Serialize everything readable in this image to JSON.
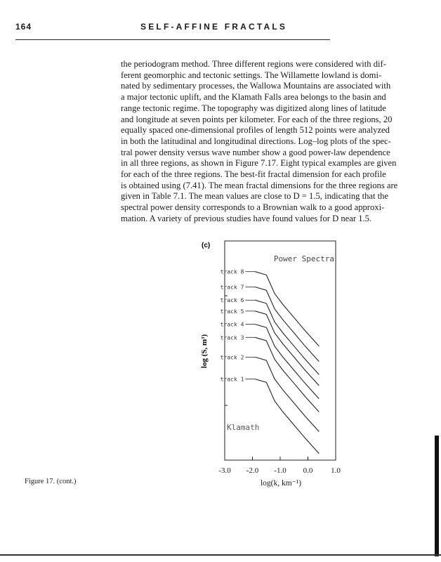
{
  "header": {
    "page_number": "164",
    "running_title": "SELF-AFFINE FRACTALS"
  },
  "body_lines": [
    "the periodogram method. Three different regions were considered with dif-",
    "ferent geomorphic and tectonic settings. The Willamette lowland is domi-",
    "nated by sedimentary processes, the Wallowa Mountains are associated with",
    "a major tectonic uplift, and the Klamath Falls area belongs to the basin and",
    "range tectonic regime. The topography was digitized along lines of latitude",
    "and longitude at seven points per kilometer. For each of the three regions, 20",
    "equally spaced one-dimensional profiles of length 512 points were analyzed",
    "in both the latitudinal and longitudinal directions. Log–log plots of the spec-",
    "tral power density versus wave number show a good power-law dependence",
    "in all three regions, as shown in Figure 7.17. Eight typical examples are given",
    "for each of the three regions. The best-fit fractal dimension for each profile",
    "is obtained using (7.41). The mean fractal dimensions for the three regions are",
    "given in Table 7.1. The mean values are close to D = 1.5, indicating that the",
    "spectral power density corresponds to a Brownian walk to a good approxi-",
    "mation. A variety of previous studies have found values for D near 1.5."
  ],
  "caption": "Figure 17. (cont.)",
  "chart_data": {
    "type": "line",
    "panel_label": "(c)",
    "title": "Power Spectra",
    "annotation": "Klamath",
    "xlabel": "log(k, km⁻¹)",
    "ylabel": "log (S, m³)",
    "xlim": [
      -3.0,
      1.0
    ],
    "x_ticks": [
      "-3.0",
      "-2.0",
      "-1.0",
      "0.0",
      "1.0"
    ],
    "x_tick_values": [
      -3.0,
      -2.0,
      -1.0,
      0.0,
      1.0
    ],
    "ylim": [
      0,
      10
    ],
    "y_tick_labels_shown": false,
    "grid": false,
    "x": [
      -1.9,
      -1.5,
      -1.2,
      -0.9,
      -0.5,
      -0.1,
      0.4
    ],
    "series": [
      {
        "name": "track 8",
        "values": [
          8.6,
          8.45,
          7.6,
          7.1,
          6.5,
          5.9,
          5.2
        ]
      },
      {
        "name": "track 7",
        "values": [
          7.9,
          7.75,
          6.9,
          6.4,
          5.8,
          5.2,
          4.5
        ]
      },
      {
        "name": "track 6",
        "values": [
          7.3,
          7.15,
          6.3,
          5.8,
          5.2,
          4.6,
          3.9
        ]
      },
      {
        "name": "track 5",
        "values": [
          6.8,
          6.65,
          5.8,
          5.3,
          4.7,
          4.1,
          3.4
        ]
      },
      {
        "name": "track 4",
        "values": [
          6.2,
          6.05,
          5.2,
          4.7,
          4.1,
          3.5,
          2.8
        ]
      },
      {
        "name": "track 3",
        "values": [
          5.6,
          5.45,
          4.6,
          4.1,
          3.5,
          2.9,
          2.2
        ]
      },
      {
        "name": "track 2",
        "values": [
          4.7,
          4.55,
          3.7,
          3.2,
          2.6,
          2.0,
          1.3
        ]
      },
      {
        "name": "track 1",
        "values": [
          3.7,
          3.55,
          2.7,
          2.2,
          1.6,
          1.0,
          0.3
        ]
      }
    ]
  }
}
